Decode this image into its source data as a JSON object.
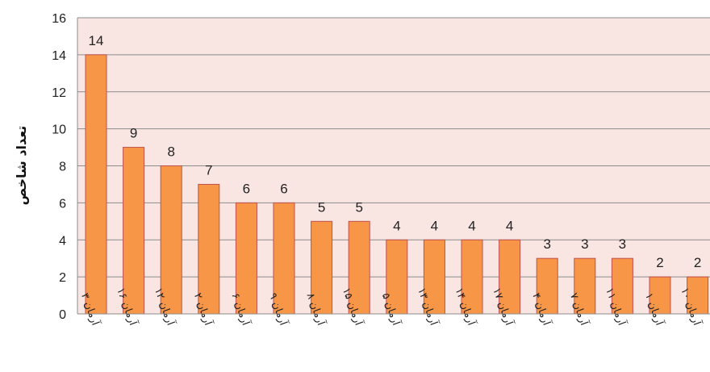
{
  "chart_data": {
    "type": "bar",
    "ylabel": "تعداد شاخص",
    "xlabel": "",
    "title": "",
    "ylim": [
      0,
      16
    ],
    "yticks": [
      0,
      2,
      4,
      6,
      8,
      10,
      12,
      14,
      16
    ],
    "grid": true,
    "legend": "none",
    "bar_color": "#F79646",
    "bar_edge_color": "#C0504D",
    "plot_background": "#F9E6E2",
    "categories": [
      "آرمان ۳",
      "آرمان ۱۶",
      "آرمان ۱۲",
      "آرمان ۲",
      "آرمان ۶",
      "آرمان ۹",
      "آرمان ۸",
      "آرمان ۱۵",
      "آرمان ۵",
      "آرمان ۱۳",
      "آرمان ۱۴",
      "آرمان ۱۷",
      "آرمان ۴",
      "آرمان ۷",
      "آرمان ۱۱",
      "آرمان ۱",
      "آرمان ۱۰"
    ],
    "values": [
      14,
      9,
      8,
      7,
      6,
      6,
      5,
      5,
      4,
      4,
      4,
      4,
      3,
      3,
      3,
      2,
      2
    ],
    "data_labels": [
      "14",
      "9",
      "8",
      "7",
      "6",
      "6",
      "5",
      "5",
      "4",
      "4",
      "4",
      "4",
      "3",
      "3",
      "3",
      "2",
      "2"
    ]
  }
}
